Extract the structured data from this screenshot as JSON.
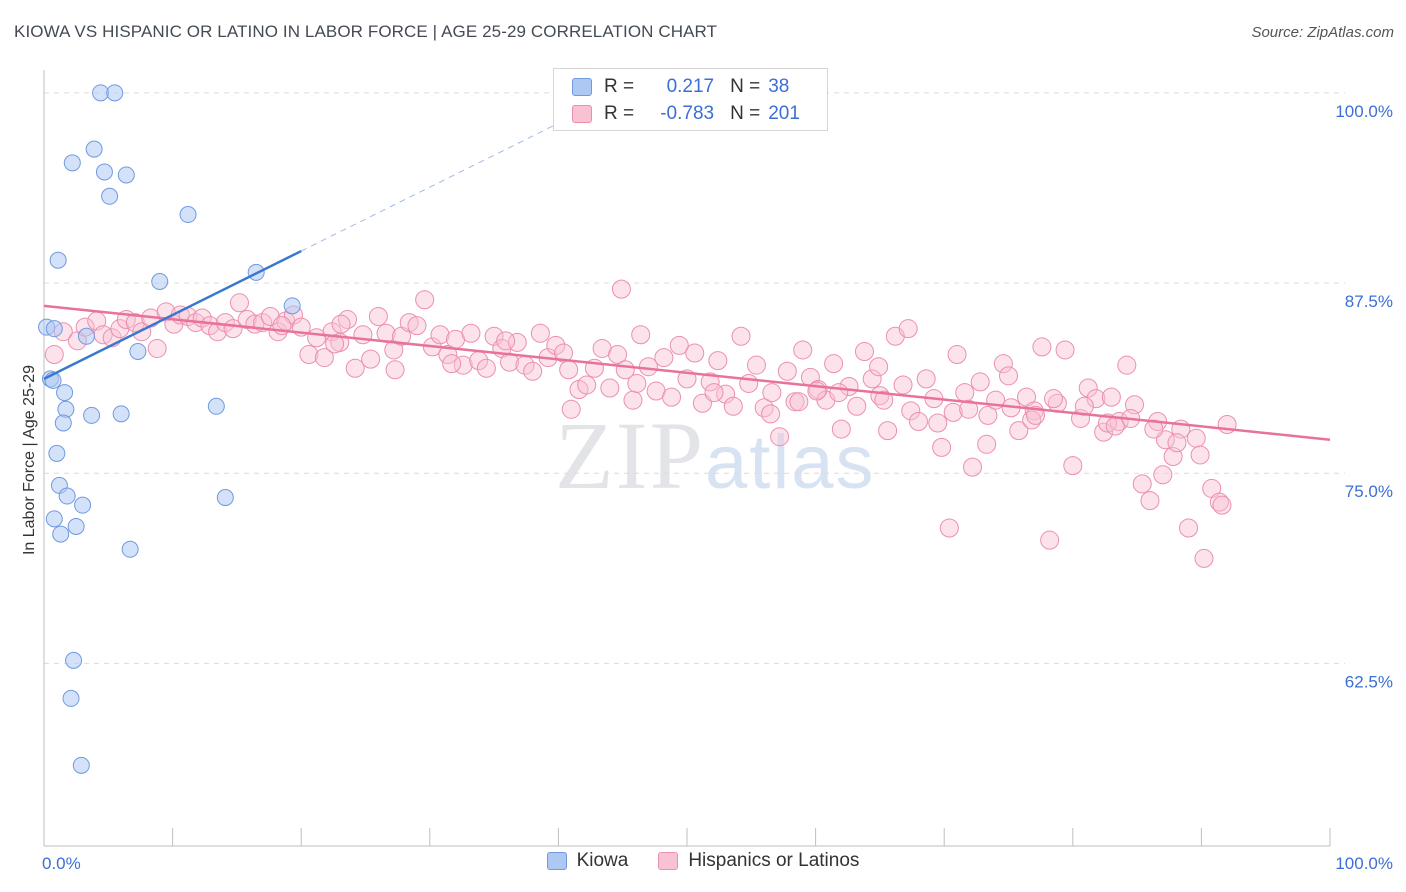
{
  "header": {
    "title": "KIOWA VS HISPANIC OR LATINO IN LABOR FORCE | AGE 25-29 CORRELATION CHART",
    "source": "Source: ZipAtlas.com"
  },
  "watermark": {
    "zip": "ZIP",
    "atlas": "atlas"
  },
  "legend": {
    "r_label": "R =",
    "n_label": "N =",
    "series": [
      {
        "name": "Kiowa",
        "r": "0.217",
        "n": "38",
        "fill": "#aec8f4",
        "stroke": "#6f9ae0"
      },
      {
        "name": "Hispanics or Latinos",
        "r": "-0.783",
        "n": "201",
        "fill": "#f8c2d3",
        "stroke": "#ec8fae"
      }
    ]
  },
  "chart_data": {
    "type": "scatter",
    "title": "KIOWA VS HISPANIC OR LATINO IN LABOR FORCE | AGE 25-29 CORRELATION CHART",
    "xlabel": "",
    "ylabel": "In Labor Force | Age 25-29",
    "xlim": [
      0,
      100
    ],
    "ylim": [
      50.5,
      101.5
    ],
    "x_tick_labels": [
      "0.0%",
      "100.0%"
    ],
    "y_ticks": [
      62.5,
      75.0,
      87.5,
      100.0
    ],
    "y_tick_labels": [
      "62.5%",
      "75.0%",
      "87.5%",
      "100.0%"
    ],
    "grid": true,
    "colors": {
      "kiowa_line": "#3a78d0",
      "latino_line": "#e8729a",
      "tick_label": "#3b6fd6"
    },
    "series": [
      {
        "name": "Kiowa",
        "color": "#aec8f4",
        "stroke": "#6f9ae0",
        "trend": {
          "x": [
            0,
            20
          ],
          "y": [
            81.2,
            89.6
          ],
          "dashed_to": [
            40,
            98.0
          ]
        },
        "points": [
          [
            4.4,
            100.0
          ],
          [
            5.5,
            100.0
          ],
          [
            3.9,
            96.3
          ],
          [
            2.2,
            95.4
          ],
          [
            4.7,
            94.8
          ],
          [
            6.4,
            94.6
          ],
          [
            5.1,
            93.2
          ],
          [
            11.2,
            92.0
          ],
          [
            1.1,
            89.0
          ],
          [
            9.0,
            87.6
          ],
          [
            16.5,
            88.2
          ],
          [
            19.3,
            86.0
          ],
          [
            0.2,
            84.6
          ],
          [
            0.8,
            84.5
          ],
          [
            3.3,
            84.0
          ],
          [
            7.3,
            83.0
          ],
          [
            0.5,
            81.2
          ],
          [
            0.7,
            81.1
          ],
          [
            1.6,
            80.3
          ],
          [
            1.7,
            79.2
          ],
          [
            3.7,
            78.8
          ],
          [
            6.0,
            78.9
          ],
          [
            13.4,
            79.4
          ],
          [
            1.5,
            78.3
          ],
          [
            1.0,
            76.3
          ],
          [
            1.2,
            74.2
          ],
          [
            1.8,
            73.5
          ],
          [
            3.0,
            72.9
          ],
          [
            14.1,
            73.4
          ],
          [
            0.8,
            72.0
          ],
          [
            2.5,
            71.5
          ],
          [
            1.3,
            71.0
          ],
          [
            6.7,
            70.0
          ],
          [
            2.3,
            62.7
          ],
          [
            2.1,
            60.2
          ],
          [
            2.9,
            55.8
          ]
        ]
      },
      {
        "name": "Hispanics or Latinos",
        "color": "#f8c2d3",
        "stroke": "#ec8fae",
        "trend": {
          "x": [
            0,
            100
          ],
          "y": [
            86.0,
            77.2
          ]
        },
        "points": [
          [
            0.8,
            82.8
          ],
          [
            1.5,
            84.3
          ],
          [
            2.6,
            83.7
          ],
          [
            3.2,
            84.6
          ],
          [
            4.1,
            85.0
          ],
          [
            4.6,
            84.1
          ],
          [
            5.3,
            83.9
          ],
          [
            5.9,
            84.5
          ],
          [
            6.4,
            85.1
          ],
          [
            7.1,
            84.9
          ],
          [
            7.6,
            84.3
          ],
          [
            8.3,
            85.2
          ],
          [
            8.8,
            83.2
          ],
          [
            9.5,
            85.6
          ],
          [
            10.1,
            84.8
          ],
          [
            10.6,
            85.4
          ],
          [
            11.2,
            85.3
          ],
          [
            11.8,
            84.9
          ],
          [
            12.3,
            85.2
          ],
          [
            12.9,
            84.7
          ],
          [
            13.5,
            84.3
          ],
          [
            14.1,
            84.9
          ],
          [
            14.7,
            84.5
          ],
          [
            15.2,
            86.2
          ],
          [
            15.8,
            85.1
          ],
          [
            16.4,
            84.8
          ],
          [
            17.0,
            84.9
          ],
          [
            17.6,
            85.3
          ],
          [
            18.2,
            84.3
          ],
          [
            18.8,
            85.0
          ],
          [
            19.4,
            85.4
          ],
          [
            20.0,
            84.6
          ],
          [
            20.6,
            82.8
          ],
          [
            21.2,
            83.9
          ],
          [
            21.8,
            82.6
          ],
          [
            22.4,
            84.3
          ],
          [
            23.0,
            83.6
          ],
          [
            23.6,
            85.1
          ],
          [
            24.2,
            81.9
          ],
          [
            24.8,
            84.1
          ],
          [
            25.4,
            82.5
          ],
          [
            26.0,
            85.3
          ],
          [
            26.6,
            84.2
          ],
          [
            27.2,
            83.1
          ],
          [
            27.8,
            84.0
          ],
          [
            28.4,
            84.9
          ],
          [
            29.0,
            84.7
          ],
          [
            29.6,
            86.4
          ],
          [
            30.2,
            83.3
          ],
          [
            30.8,
            84.1
          ],
          [
            31.4,
            82.8
          ],
          [
            32.0,
            83.8
          ],
          [
            32.6,
            82.1
          ],
          [
            33.2,
            84.2
          ],
          [
            33.8,
            82.4
          ],
          [
            34.4,
            81.9
          ],
          [
            35.0,
            84.0
          ],
          [
            35.6,
            83.2
          ],
          [
            36.2,
            82.3
          ],
          [
            36.8,
            83.6
          ],
          [
            37.4,
            82.1
          ],
          [
            38.0,
            81.7
          ],
          [
            38.6,
            84.2
          ],
          [
            39.2,
            82.6
          ],
          [
            39.8,
            83.4
          ],
          [
            40.4,
            82.9
          ],
          [
            41.0,
            79.2
          ],
          [
            41.6,
            80.5
          ],
          [
            42.2,
            80.8
          ],
          [
            42.8,
            81.9
          ],
          [
            43.4,
            83.2
          ],
          [
            44.0,
            80.6
          ],
          [
            44.6,
            82.8
          ],
          [
            45.2,
            81.8
          ],
          [
            45.8,
            79.8
          ],
          [
            46.4,
            84.1
          ],
          [
            47.0,
            82.0
          ],
          [
            47.6,
            80.4
          ],
          [
            48.2,
            82.6
          ],
          [
            48.8,
            80.0
          ],
          [
            49.4,
            83.4
          ],
          [
            50.0,
            81.2
          ],
          [
            50.6,
            82.9
          ],
          [
            51.2,
            79.6
          ],
          [
            51.8,
            81.0
          ],
          [
            52.4,
            82.4
          ],
          [
            53.0,
            80.2
          ],
          [
            53.6,
            79.4
          ],
          [
            54.2,
            84.0
          ],
          [
            54.8,
            80.9
          ],
          [
            55.4,
            82.1
          ],
          [
            56.0,
            79.3
          ],
          [
            56.6,
            80.3
          ],
          [
            57.2,
            77.4
          ],
          [
            57.8,
            81.7
          ],
          [
            58.4,
            79.7
          ],
          [
            59.0,
            83.1
          ],
          [
            59.6,
            81.3
          ],
          [
            60.2,
            80.5
          ],
          [
            60.8,
            79.8
          ],
          [
            61.4,
            82.2
          ],
          [
            62.0,
            77.9
          ],
          [
            62.6,
            80.7
          ],
          [
            63.2,
            79.4
          ],
          [
            63.8,
            83.0
          ],
          [
            64.4,
            81.2
          ],
          [
            65.0,
            80.1
          ],
          [
            65.6,
            77.8
          ],
          [
            66.2,
            84.0
          ],
          [
            66.8,
            80.8
          ],
          [
            67.4,
            79.1
          ],
          [
            68.0,
            78.4
          ],
          [
            68.6,
            81.2
          ],
          [
            69.2,
            79.9
          ],
          [
            69.8,
            76.7
          ],
          [
            70.4,
            71.4
          ],
          [
            71.0,
            82.8
          ],
          [
            71.6,
            80.3
          ],
          [
            72.2,
            75.4
          ],
          [
            72.8,
            81.0
          ],
          [
            73.4,
            78.8
          ],
          [
            74.0,
            79.8
          ],
          [
            74.6,
            82.2
          ],
          [
            75.2,
            79.3
          ],
          [
            75.8,
            77.8
          ],
          [
            76.4,
            80.0
          ],
          [
            77.0,
            79.1
          ],
          [
            77.6,
            83.3
          ],
          [
            78.2,
            70.6
          ],
          [
            78.8,
            79.6
          ],
          [
            79.4,
            83.1
          ],
          [
            80.0,
            75.5
          ],
          [
            80.6,
            78.6
          ],
          [
            81.2,
            80.6
          ],
          [
            81.8,
            79.9
          ],
          [
            82.4,
            77.7
          ],
          [
            83.0,
            80.0
          ],
          [
            83.6,
            78.4
          ],
          [
            84.2,
            82.1
          ],
          [
            84.8,
            79.5
          ],
          [
            85.4,
            74.3
          ],
          [
            86.0,
            73.2
          ],
          [
            86.6,
            78.4
          ],
          [
            87.2,
            77.2
          ],
          [
            87.8,
            76.1
          ],
          [
            88.4,
            77.9
          ],
          [
            89.0,
            71.4
          ],
          [
            89.6,
            77.3
          ],
          [
            90.2,
            69.4
          ],
          [
            90.8,
            74.0
          ],
          [
            91.4,
            73.1
          ],
          [
            92.0,
            78.2
          ],
          [
            23.1,
            84.8
          ],
          [
            40.8,
            81.8
          ],
          [
            46.1,
            80.9
          ],
          [
            52.1,
            80.3
          ],
          [
            56.5,
            78.9
          ],
          [
            58.7,
            79.7
          ],
          [
            61.8,
            80.3
          ],
          [
            64.9,
            82.0
          ],
          [
            67.2,
            84.5
          ],
          [
            69.5,
            78.3
          ],
          [
            70.7,
            79.0
          ],
          [
            73.3,
            76.9
          ],
          [
            75.0,
            81.4
          ],
          [
            76.8,
            78.5
          ],
          [
            78.5,
            79.9
          ],
          [
            80.9,
            79.4
          ],
          [
            82.7,
            78.3
          ],
          [
            84.5,
            78.6
          ],
          [
            86.3,
            77.9
          ],
          [
            88.1,
            77.0
          ],
          [
            89.9,
            76.2
          ],
          [
            91.6,
            72.9
          ],
          [
            60.1,
            80.4
          ],
          [
            65.3,
            79.8
          ],
          [
            71.9,
            79.2
          ],
          [
            77.1,
            78.8
          ],
          [
            83.3,
            78.1
          ],
          [
            87.0,
            74.9
          ],
          [
            44.9,
            87.1
          ],
          [
            35.9,
            83.7
          ],
          [
            31.7,
            82.2
          ],
          [
            27.3,
            81.8
          ],
          [
            22.6,
            83.5
          ],
          [
            18.5,
            84.7
          ]
        ]
      }
    ]
  }
}
